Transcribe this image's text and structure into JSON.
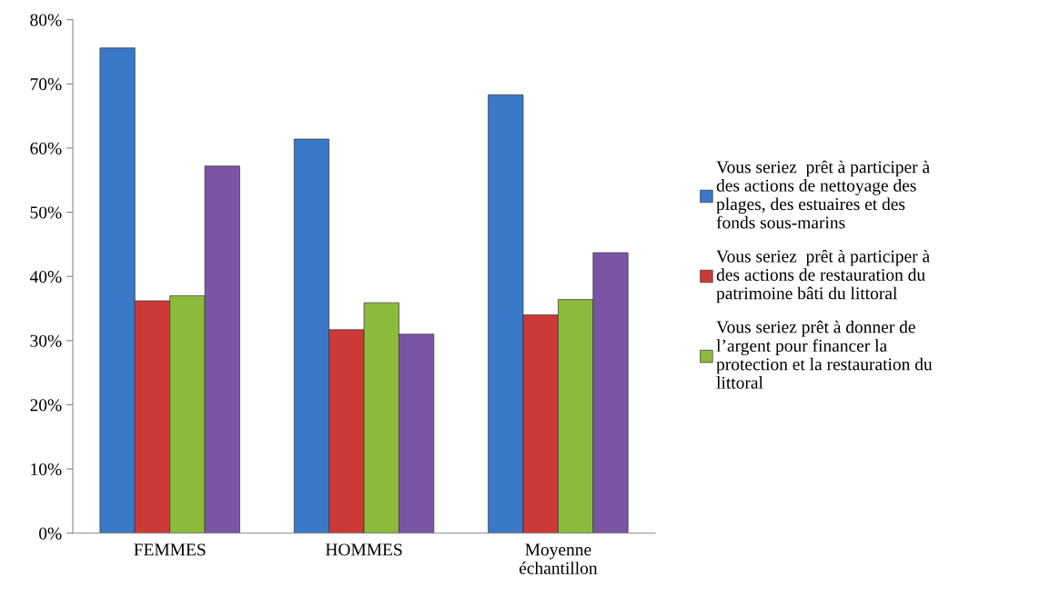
{
  "chart_data": {
    "type": "bar",
    "categories": [
      "FEMMES",
      "HOMMES",
      "Moyenne\néchantillon"
    ],
    "series": [
      {
        "name": "Vous seriez  prêt à participer à des actions de nettoyage des plages, des estuaires et des fonds sous-marins",
        "color": "#3a78c8",
        "values": [
          75.6,
          61.4,
          68.3
        ]
      },
      {
        "name": "Vous seriez  prêt à participer à des actions de restauration du patrimoine bâti du littoral",
        "color": "#cc3a38",
        "values": [
          36.2,
          31.7,
          34.0
        ]
      },
      {
        "name": "Vous seriez prêt à donner de l’argent pour financer la protection et la restauration du littoral",
        "color": "#8cbb3c",
        "values": [
          37.0,
          35.9,
          36.4
        ]
      },
      {
        "color": "#7a55a6",
        "values": [
          57.2,
          31.0,
          43.7
        ]
      }
    ],
    "ylim": [
      0,
      80
    ],
    "yticks": [
      {
        "value": 0,
        "label": "0%"
      },
      {
        "value": 10,
        "label": "10%"
      },
      {
        "value": 20,
        "label": "20%"
      },
      {
        "value": 30,
        "label": "30%"
      },
      {
        "value": 40,
        "label": "40%"
      },
      {
        "value": 50,
        "label": "50%"
      },
      {
        "value": 60,
        "label": "60%"
      },
      {
        "value": 70,
        "label": "70%"
      },
      {
        "value": 80,
        "label": "80%"
      }
    ],
    "grid": false,
    "legend": "right"
  }
}
